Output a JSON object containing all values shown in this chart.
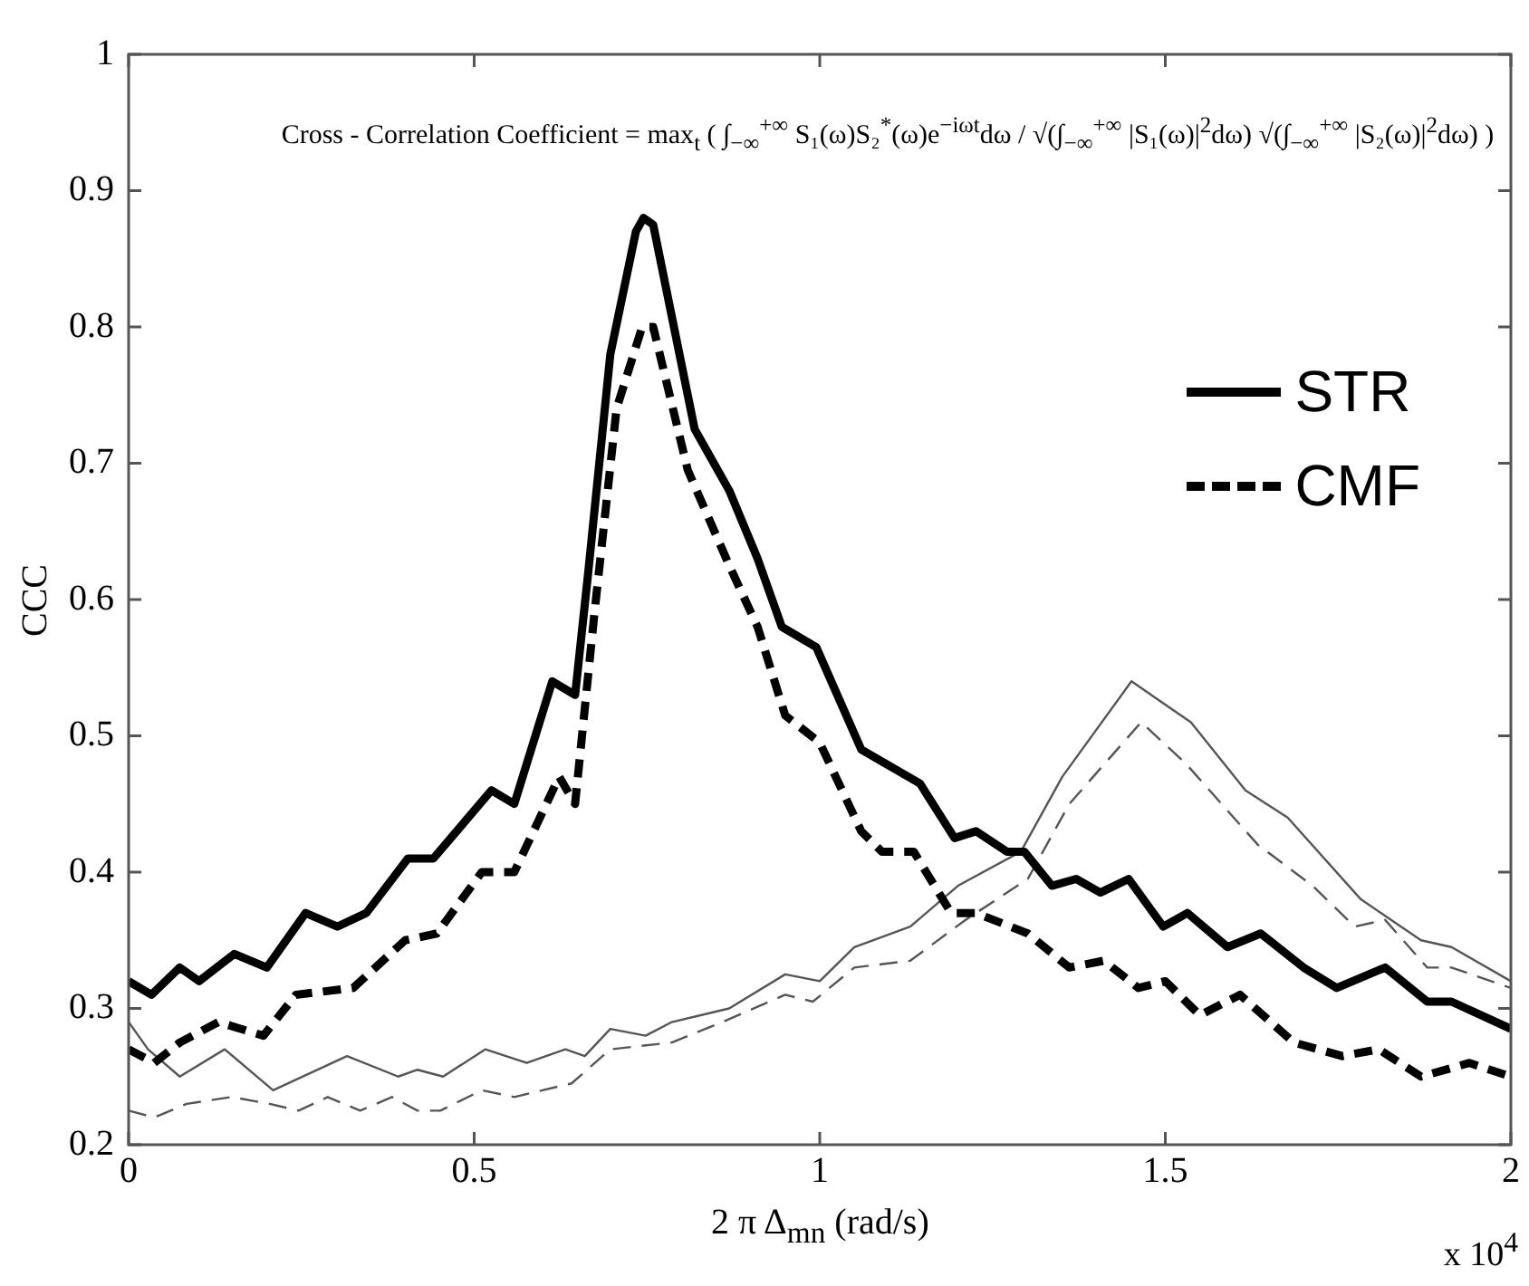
{
  "chart_data": {
    "type": "line",
    "xlabel": "2 π Δ$_{mn}$ (rad/s)",
    "ylabel": "CCC",
    "xlim": [
      0,
      2
    ],
    "xticks": [
      0,
      0.5,
      1,
      1.5,
      2
    ],
    "ylim": [
      0.2,
      1
    ],
    "yticks": [
      0.2,
      0.3,
      0.4,
      0.5,
      0.6,
      0.7,
      0.8,
      0.9,
      1
    ],
    "grid": false,
    "legend": "right",
    "annotations": [
      "Cross - Correlation Coefficient = max$_{t}$ ( ∫$_{−∞}$$^{+∞}$ S₁(ω)S₂$^{*}$(ω)e$^{−iωt}$dω / √(∫$_{−∞}$$^{+∞}$ |S₁(ω)|$^{2}$dω) √(∫$_{−∞}$$^{+∞}$ |S₂(ω)|$^{2}$dω) )",
      "x 10$^{4}$"
    ],
    "series": [
      {
        "name": "STR",
        "color": "#000000",
        "line_style": "solid",
        "x": [
          0,
          0.033,
          0.074,
          0.102,
          0.153,
          0.2,
          0.256,
          0.302,
          0.344,
          0.404,
          0.441,
          0.525,
          0.558,
          0.613,
          0.646,
          0.665,
          0.697,
          0.734,
          0.745,
          0.759,
          0.819,
          0.869,
          0.91,
          0.945,
          0.995,
          1.06,
          1.145,
          1.195,
          1.226,
          1.271,
          1.296,
          1.336,
          1.371,
          1.406,
          1.447,
          1.497,
          1.532,
          1.59,
          1.638,
          1.7,
          1.748,
          1.818,
          1.879,
          1.914,
          2.0
        ],
        "values": [
          0.32,
          0.31,
          0.33,
          0.32,
          0.34,
          0.33,
          0.37,
          0.36,
          0.37,
          0.41,
          0.41,
          0.46,
          0.45,
          0.54,
          0.53,
          0.62,
          0.78,
          0.87,
          0.88,
          0.875,
          0.725,
          0.68,
          0.63,
          0.58,
          0.565,
          0.49,
          0.465,
          0.425,
          0.43,
          0.415,
          0.415,
          0.39,
          0.395,
          0.385,
          0.395,
          0.36,
          0.37,
          0.345,
          0.355,
          0.33,
          0.315,
          0.33,
          0.305,
          0.305,
          0.285
        ]
      },
      {
        "name": "CMF",
        "color": "#000000",
        "line_style": "dashed",
        "x": [
          0,
          0.037,
          0.074,
          0.13,
          0.195,
          0.242,
          0.325,
          0.4,
          0.446,
          0.511,
          0.558,
          0.623,
          0.646,
          0.674,
          0.706,
          0.743,
          0.759,
          0.809,
          0.869,
          0.91,
          0.95,
          1.0,
          1.06,
          1.09,
          1.136,
          1.19,
          1.226,
          1.301,
          1.361,
          1.411,
          1.461,
          1.5,
          1.55,
          1.608,
          1.686,
          1.756,
          1.809,
          1.87,
          1.94,
          2.0
        ],
        "values": [
          0.27,
          0.26,
          0.275,
          0.29,
          0.28,
          0.31,
          0.315,
          0.35,
          0.355,
          0.4,
          0.4,
          0.47,
          0.45,
          0.59,
          0.74,
          0.8,
          0.8,
          0.695,
          0.625,
          0.58,
          0.515,
          0.495,
          0.43,
          0.415,
          0.415,
          0.37,
          0.37,
          0.355,
          0.33,
          0.335,
          0.315,
          0.32,
          0.295,
          0.31,
          0.275,
          0.265,
          0.27,
          0.25,
          0.26,
          0.25
        ]
      },
      {
        "color": "#555555",
        "line_style": "solid",
        "x": [
          0,
          0.028,
          0.074,
          0.139,
          0.209,
          0.316,
          0.39,
          0.418,
          0.455,
          0.516,
          0.576,
          0.632,
          0.66,
          0.697,
          0.748,
          0.786,
          0.869,
          0.95,
          1.0,
          1.05,
          1.131,
          1.2,
          1.291,
          1.351,
          1.451,
          1.537,
          1.616,
          1.677,
          1.783,
          1.87,
          1.914,
          2.0
        ],
        "values": [
          0.29,
          0.27,
          0.25,
          0.27,
          0.24,
          0.265,
          0.25,
          0.255,
          0.25,
          0.27,
          0.26,
          0.27,
          0.265,
          0.285,
          0.28,
          0.29,
          0.3,
          0.325,
          0.32,
          0.345,
          0.36,
          0.39,
          0.415,
          0.47,
          0.54,
          0.51,
          0.46,
          0.44,
          0.38,
          0.35,
          0.345,
          0.32
        ]
      },
      {
        "color": "#555555",
        "line_style": "dashed",
        "x": [
          0,
          0.037,
          0.084,
          0.149,
          0.204,
          0.246,
          0.288,
          0.335,
          0.381,
          0.418,
          0.451,
          0.511,
          0.558,
          0.641,
          0.697,
          0.786,
          0.859,
          0.95,
          0.99,
          1.05,
          1.131,
          1.211,
          1.301,
          1.361,
          1.465,
          1.529,
          1.634,
          1.713,
          1.774,
          1.818,
          1.879,
          1.914,
          2.0
        ],
        "values": [
          0.225,
          0.22,
          0.23,
          0.235,
          0.23,
          0.225,
          0.235,
          0.225,
          0.235,
          0.225,
          0.225,
          0.24,
          0.235,
          0.245,
          0.27,
          0.275,
          0.29,
          0.31,
          0.305,
          0.33,
          0.335,
          0.365,
          0.395,
          0.45,
          0.51,
          0.48,
          0.42,
          0.39,
          0.36,
          0.365,
          0.33,
          0.33,
          0.315
        ]
      }
    ]
  }
}
